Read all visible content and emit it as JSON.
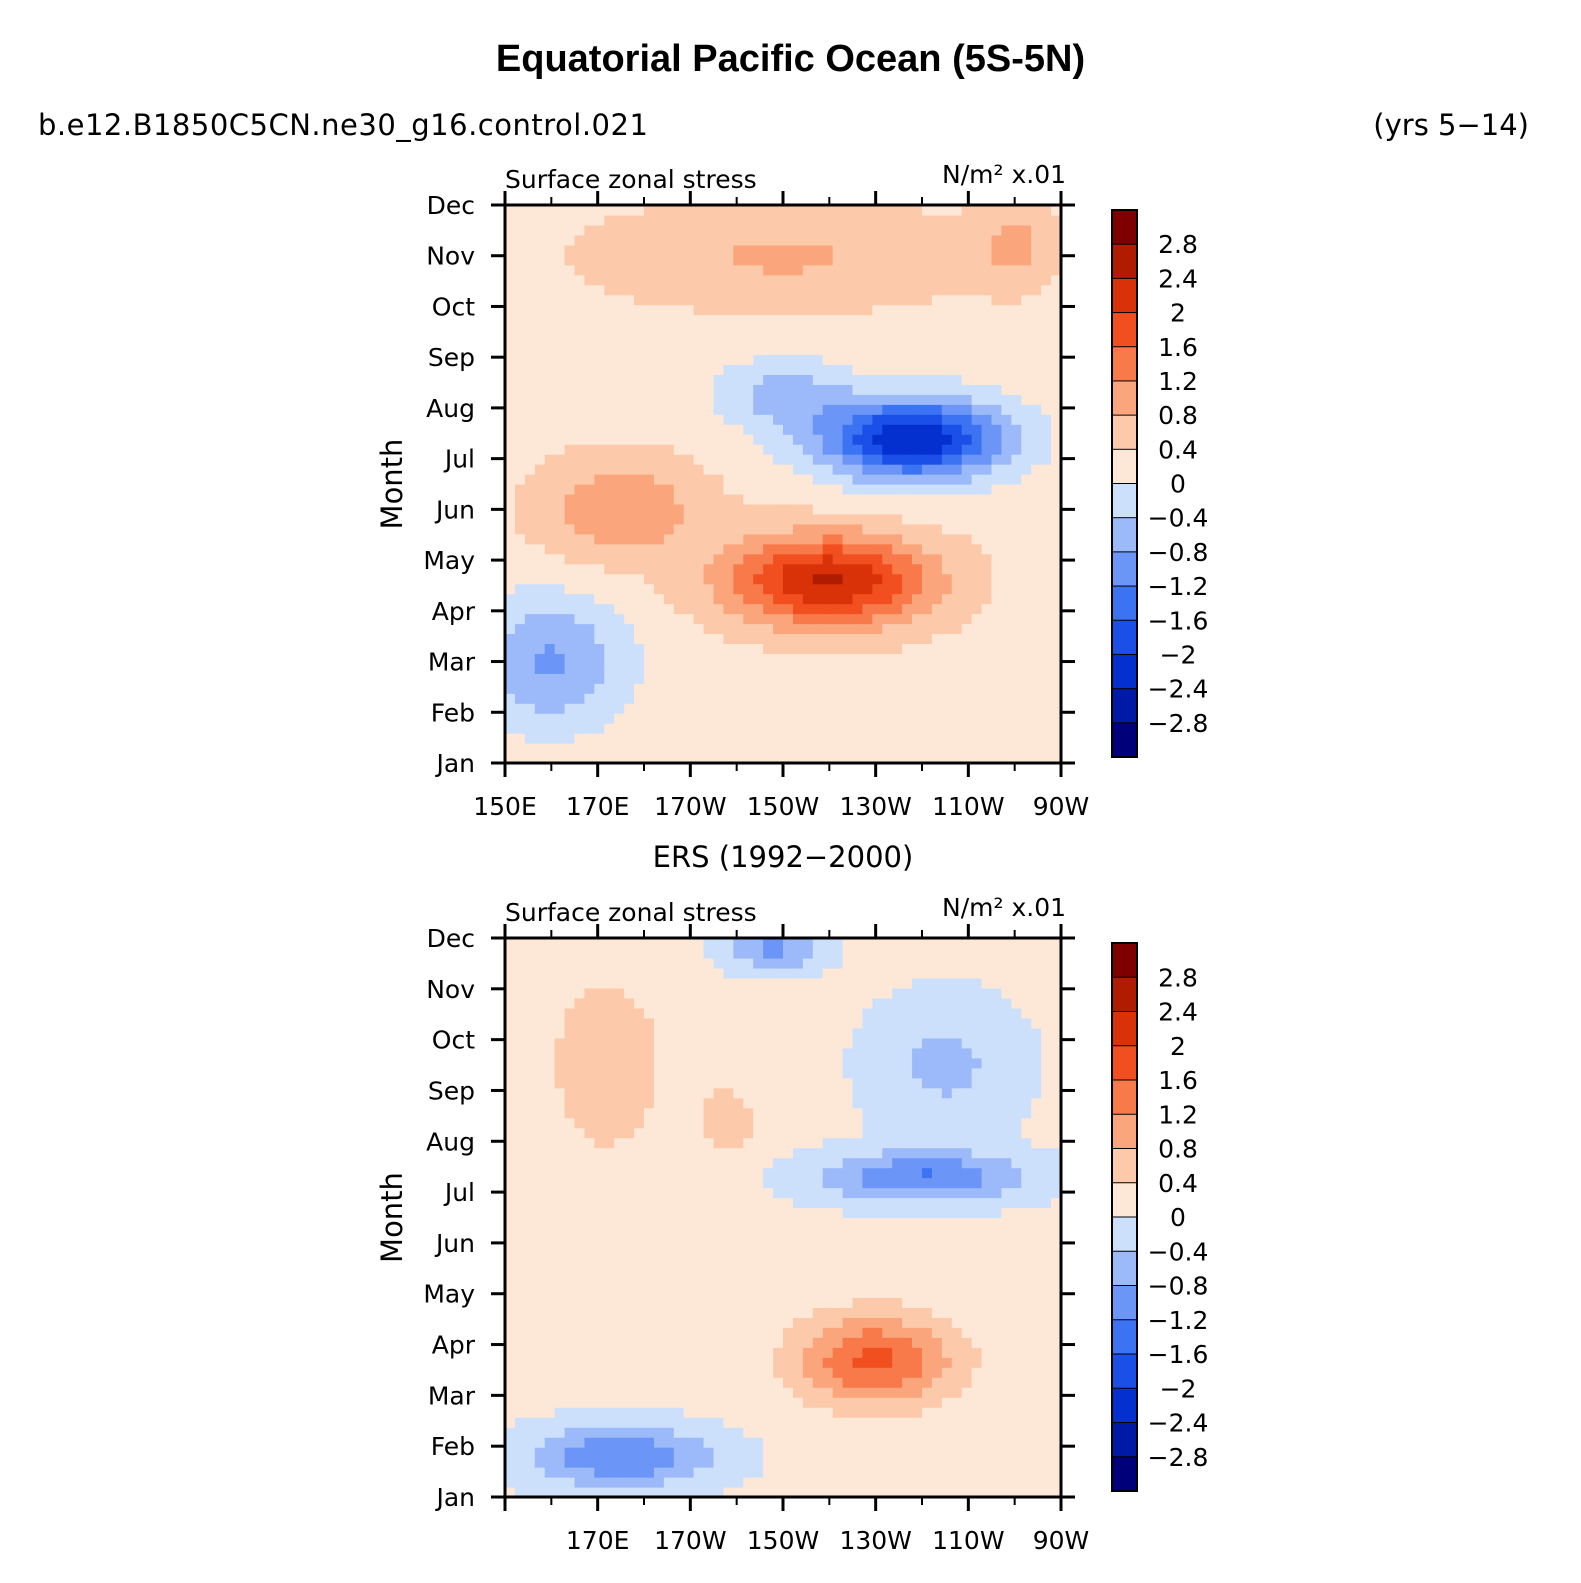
{
  "title": "Equatorial Pacific Ocean (5S-5N)",
  "run_name": "b.e12.B1850C5CN.ne30_g16.control.021",
  "years": "(yrs 5−14)",
  "colors": {
    "levels": [
      -2.8,
      -2.4,
      -2,
      -1.6,
      -1.2,
      -0.8,
      -0.4,
      0,
      0.4,
      0.8,
      1.2,
      1.6,
      2,
      2.4,
      2.8
    ],
    "fills": [
      "#00007a",
      "#001aa8",
      "#0530d0",
      "#1a4fe8",
      "#3b73f2",
      "#6b95f7",
      "#9cbaf9",
      "#cde0fb",
      "#fde8d8",
      "#fccaaa",
      "#fba57c",
      "#f87a4a",
      "#f24f20",
      "#d93208",
      "#b01c02",
      "#7e0000"
    ]
  },
  "chart_data": [
    {
      "type": "heatmap",
      "subtitle": "",
      "left_label": "Surface zonal stress",
      "right_label": "N/m² x.01",
      "ylabel": "Month",
      "xlabel": "",
      "x_ticks": [
        "150E",
        "170E",
        "170W",
        "150W",
        "130W",
        "110W",
        "90W"
      ],
      "y_ticks": [
        "Jan",
        "Feb",
        "Mar",
        "Apr",
        "May",
        "Jun",
        "Jul",
        "Aug",
        "Sep",
        "Oct",
        "Nov",
        "Dec"
      ],
      "colorbar_labels": [
        "2.8",
        "2.4",
        "2",
        "1.6",
        "1.2",
        "0.8",
        "0.4",
        "0",
        "−0.4",
        "−0.8",
        "−1.2",
        "−1.6",
        "−2",
        "−2.4",
        "−2.8"
      ],
      "features": [
        {
          "x": 160,
          "y": 2.0,
          "sx": 16,
          "sy": 1.3,
          "a": -1.1,
          "rot": -0.3
        },
        {
          "x": -122,
          "y": 6.4,
          "sx": 20,
          "sy": 0.8,
          "a": -2.6,
          "rot": -0.42
        },
        {
          "x": -150,
          "y": 7.3,
          "sx": 14,
          "sy": 0.7,
          "a": -0.8,
          "rot": -0.35
        },
        {
          "x": -140,
          "y": 3.6,
          "sx": 22,
          "sy": 0.9,
          "a": 2.2,
          "rot": -0.4
        },
        {
          "x": 175,
          "y": 5.0,
          "sx": 18,
          "sy": 1.0,
          "a": 0.9,
          "rot": -0.3
        },
        {
          "x": -150,
          "y": 10.0,
          "sx": 40,
          "sy": 1.0,
          "a": 0.6,
          "rot": 0
        },
        {
          "x": -100,
          "y": 10.2,
          "sx": 8,
          "sy": 0.8,
          "a": 0.6,
          "rot": 0
        }
      ],
      "base": 0.25
    },
    {
      "type": "heatmap",
      "subtitle": "ERS (1992−2000)",
      "left_label": "Surface zonal stress",
      "right_label": "N/m² x.01",
      "ylabel": "Month",
      "xlabel": "",
      "x_ticks": [
        "",
        "170E",
        "170W",
        "150W",
        "130W",
        "110W",
        "90W"
      ],
      "y_ticks": [
        "Jan",
        "Feb",
        "Mar",
        "Apr",
        "May",
        "Jun",
        "Jul",
        "Aug",
        "Sep",
        "Oct",
        "Nov",
        "Dec"
      ],
      "colorbar_labels": [
        "2.8",
        "2.4",
        "2",
        "1.6",
        "1.2",
        "0.8",
        "0.4",
        "0",
        "−0.4",
        "−0.8",
        "−1.2",
        "−1.6",
        "−2",
        "−2.4",
        "−2.8"
      ],
      "features": [
        {
          "x": 175,
          "y": 0.8,
          "sx": 20,
          "sy": 0.6,
          "a": -1.3,
          "rot": 0
        },
        {
          "x": -130,
          "y": 2.7,
          "sx": 17,
          "sy": 0.9,
          "a": 1.6,
          "rot": -0.45
        },
        {
          "x": -120,
          "y": 6.3,
          "sx": 22,
          "sy": 0.5,
          "a": -1.3,
          "rot": 0
        },
        {
          "x": -115,
          "y": 8.5,
          "sx": 16,
          "sy": 1.3,
          "a": -0.6,
          "rot": 0
        },
        {
          "x": -152,
          "y": 10.8,
          "sx": 10,
          "sy": 0.45,
          "a": -1.0,
          "rot": 0
        },
        {
          "x": 172,
          "y": 8.5,
          "sx": 14,
          "sy": 2.0,
          "a": 0.55,
          "rot": 0
        },
        {
          "x": -162,
          "y": 7.4,
          "sx": 7,
          "sy": 0.8,
          "a": 0.5,
          "rot": 0
        }
      ],
      "base": 0.1
    }
  ]
}
